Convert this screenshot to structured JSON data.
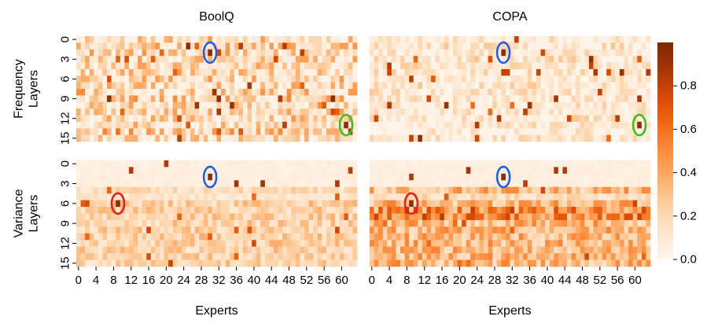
{
  "chart_data": [
    {
      "type": "heatmap",
      "title": "BoolQ",
      "row_label": "Frequency\nLayers",
      "xlabel": "",
      "x_tick_labels": [],
      "y_tick_labels": [
        "0",
        "3",
        "6",
        "9",
        "12",
        "15"
      ],
      "rows": 16,
      "cols": 64,
      "seed": 11,
      "profile": "freq_boolq",
      "marked_cells": [
        {
          "layer": 2,
          "expert": 30,
          "value": 0.95,
          "circle": "#1f5fe0"
        },
        {
          "layer": 13,
          "expert": 61,
          "value": 0.95,
          "circle": "#3cbf1e"
        }
      ]
    },
    {
      "type": "heatmap",
      "title": "COPA",
      "row_label": "",
      "xlabel": "",
      "x_tick_labels": [],
      "y_tick_labels": [],
      "rows": 16,
      "cols": 64,
      "seed": 23,
      "profile": "freq_copa",
      "marked_cells": [
        {
          "layer": 2,
          "expert": 30,
          "value": 0.95,
          "circle": "#1f5fe0"
        },
        {
          "layer": 13,
          "expert": 61,
          "value": 0.95,
          "circle": "#3cbf1e"
        }
      ]
    },
    {
      "type": "heatmap",
      "title": "",
      "row_label": "Variance\nLayers",
      "xlabel": "Experts",
      "x_tick_labels": [
        "0",
        "4",
        "8",
        "12",
        "16",
        "20",
        "24",
        "28",
        "32",
        "36",
        "40",
        "44",
        "48",
        "52",
        "56",
        "60"
      ],
      "y_tick_labels": [
        "0",
        "3",
        "6",
        "9",
        "12",
        "15"
      ],
      "rows": 16,
      "cols": 64,
      "seed": 37,
      "profile": "var_boolq",
      "marked_cells": [
        {
          "layer": 2,
          "expert": 30,
          "value": 0.95,
          "circle": "#1f5fe0"
        },
        {
          "layer": 6,
          "expert": 9,
          "value": 0.95,
          "circle": "#e81e1e"
        }
      ]
    },
    {
      "type": "heatmap",
      "title": "",
      "row_label": "",
      "xlabel": "Experts",
      "x_tick_labels": [
        "0",
        "4",
        "8",
        "12",
        "16",
        "20",
        "24",
        "28",
        "32",
        "36",
        "40",
        "44",
        "48",
        "52",
        "56",
        "60"
      ],
      "y_tick_labels": [],
      "rows": 16,
      "cols": 64,
      "seed": 53,
      "profile": "var_copa",
      "marked_cells": [
        {
          "layer": 2,
          "expert": 30,
          "value": 0.95,
          "circle": "#1f5fe0"
        },
        {
          "layer": 6,
          "expert": 9,
          "value": 0.95,
          "circle": "#e81e1e"
        }
      ]
    }
  ],
  "colorbar": {
    "colormap": "Oranges",
    "range": [
      0.0,
      1.0
    ],
    "tick_values": [
      0.0,
      0.2,
      0.4,
      0.6,
      0.8
    ],
    "tick_labels": [
      "0.0",
      "0.2",
      "0.4",
      "0.6",
      "0.8"
    ]
  }
}
